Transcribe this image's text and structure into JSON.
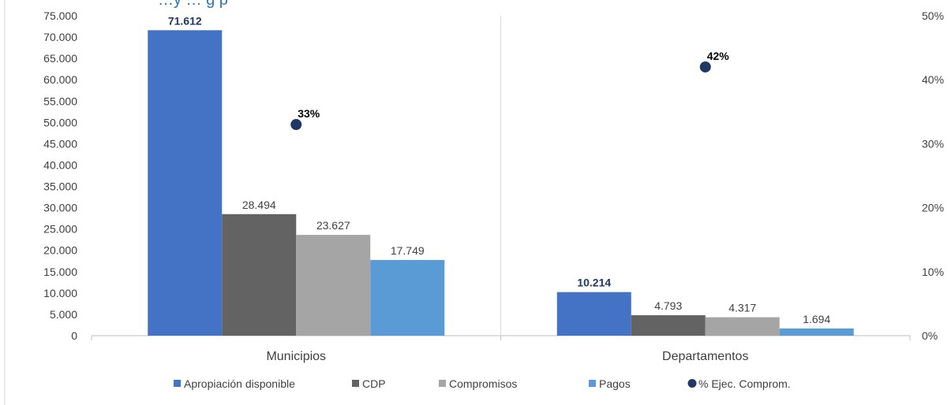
{
  "chart_data": {
    "type": "bar",
    "title": "…y … g p",
    "categories": [
      "Municipios",
      "Departamentos"
    ],
    "series": [
      {
        "name": "Apropiación disponible",
        "values": [
          71612,
          10214
        ],
        "labels": [
          "71.612",
          "10.214"
        ],
        "color": "#4472c4"
      },
      {
        "name": "CDP",
        "values": [
          28494,
          4793
        ],
        "labels": [
          "28.494",
          "4.793"
        ],
        "color": "#636363"
      },
      {
        "name": "Compromisos",
        "values": [
          23627,
          4317
        ],
        "labels": [
          "23.627",
          "4.317"
        ],
        "color": "#a5a5a5"
      },
      {
        "name": "Pagos",
        "values": [
          17749,
          1694
        ],
        "labels": [
          "17.749",
          "1.694"
        ],
        "color": "#5b9bd5"
      }
    ],
    "secondary_series": {
      "name": "% Ejec. Comprom.",
      "type": "scatter",
      "values": [
        0.33,
        0.42
      ],
      "labels": [
        "33%",
        "42%"
      ],
      "color": "#1f3864"
    },
    "ylim": [
      0,
      75000
    ],
    "yticks": [
      "0",
      "5.000",
      "10.000",
      "15.000",
      "20.000",
      "25.000",
      "30.000",
      "35.000",
      "40.000",
      "45.000",
      "50.000",
      "55.000",
      "60.000",
      "65.000",
      "70.000",
      "75.000"
    ],
    "y2lim": [
      0,
      0.5
    ],
    "y2ticks": [
      "0%",
      "10%",
      "20%",
      "30%",
      "40%",
      "50%"
    ],
    "legend_position": "bottom",
    "grid": false
  }
}
